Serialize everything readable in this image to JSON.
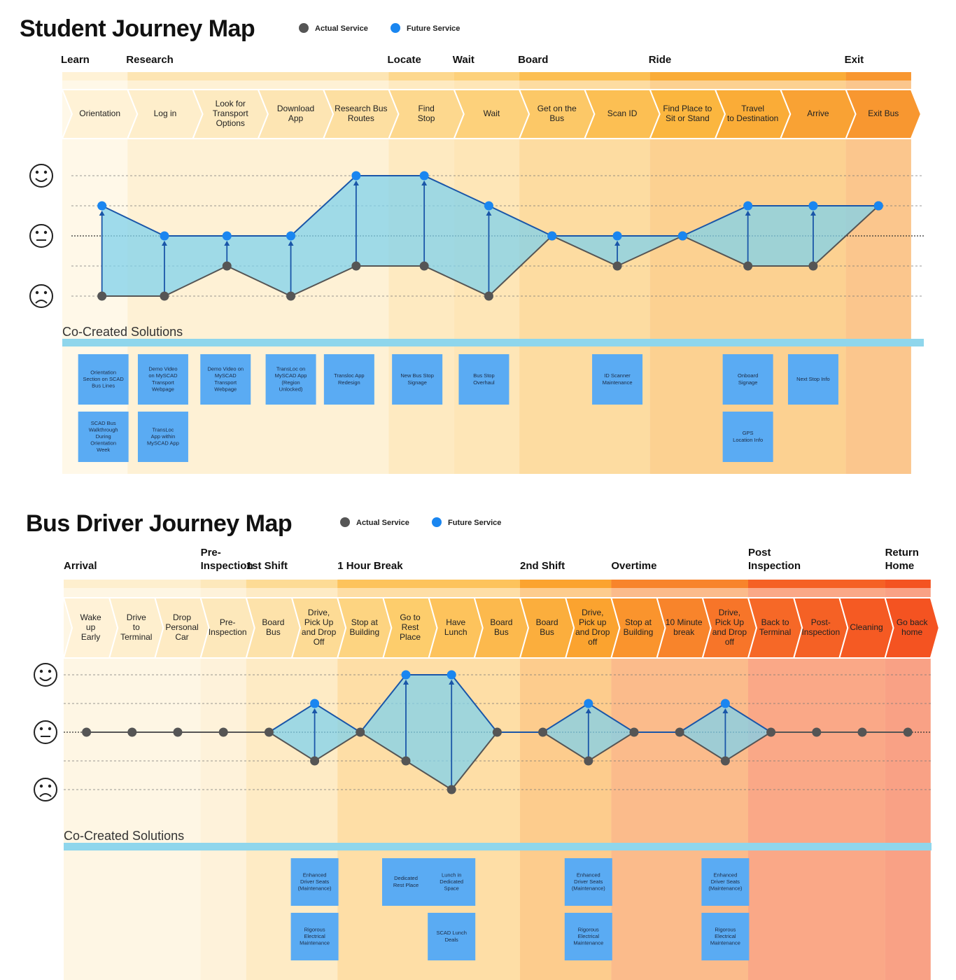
{
  "student": {
    "title": "Student Journey Map",
    "legend": {
      "actual": "Actual Service",
      "future": "Future Service",
      "actual_color": "#555555",
      "future_color": "#1a86f0"
    },
    "phases": [
      {
        "label": "Learn",
        "first": 0,
        "last": 0
      },
      {
        "label": "Research",
        "first": 1,
        "last": 4
      },
      {
        "label": "Locate",
        "first": 5,
        "last": 5
      },
      {
        "label": "Wait",
        "first": 6,
        "last": 6
      },
      {
        "label": "Board",
        "first": 7,
        "last": 8
      },
      {
        "label": "Ride",
        "first": 9,
        "last": 11
      },
      {
        "label": "Exit",
        "first": 12,
        "last": 12
      }
    ],
    "steps": [
      [
        "Orientation"
      ],
      [
        "Log in"
      ],
      [
        "Look for",
        "Transport",
        "Options"
      ],
      [
        "Download",
        "App"
      ],
      [
        "Research Bus",
        "Routes"
      ],
      [
        "Find",
        "Stop"
      ],
      [
        "Wait"
      ],
      [
        "Get on the",
        "Bus"
      ],
      [
        "Scan ID"
      ],
      [
        "Find Place to",
        "Sit or Stand"
      ],
      [
        "Travel",
        "to Destination"
      ],
      [
        "Arrive"
      ],
      [
        "Exit Bus"
      ]
    ],
    "emotion_scale": "1 = very sad, 5 = very happy",
    "actual": [
      {
        "step": 0,
        "level": 1
      },
      {
        "step": 1,
        "level": 1
      },
      {
        "step": 2,
        "level": 2
      },
      {
        "step": 3,
        "level": 1
      },
      {
        "step": 4,
        "level": 2
      },
      {
        "step": 5,
        "level": 2
      },
      {
        "step": 6,
        "level": 1
      },
      {
        "step": 7,
        "level": 3
      },
      {
        "step": 8,
        "level": 2
      },
      {
        "step": 9,
        "level": 3
      },
      {
        "step": 10,
        "level": 2
      },
      {
        "step": 11,
        "level": 2
      },
      {
        "step": 12,
        "level": 4
      }
    ],
    "future": [
      {
        "step": 0,
        "level": 4
      },
      {
        "step": 1,
        "level": 3
      },
      {
        "step": 2,
        "level": 3
      },
      {
        "step": 3,
        "level": 3
      },
      {
        "step": 4,
        "level": 5
      },
      {
        "step": 5,
        "level": 5
      },
      {
        "step": 6,
        "level": 4
      },
      {
        "step": 7,
        "level": 3
      },
      {
        "step": 8,
        "level": 3
      },
      {
        "step": 9,
        "level": 3
      },
      {
        "step": 10,
        "level": 4
      },
      {
        "step": 11,
        "level": 4
      },
      {
        "step": 12,
        "level": 4
      }
    ],
    "solutions_label": "Co-Created Solutions",
    "solutions": [
      {
        "step": 0,
        "row": 0,
        "text": [
          "Orientation",
          "Section on SCAD",
          "Bus Lines"
        ]
      },
      {
        "step": 0,
        "row": 1,
        "text": [
          "SCAD Bus",
          "Walkthrough",
          "During",
          "Orientation",
          "Week"
        ]
      },
      {
        "step": 1,
        "row": 0,
        "text": [
          "Demo Video",
          "on MySCAD",
          "Transport",
          "Webpage"
        ]
      },
      {
        "step": 1,
        "row": 1,
        "text": [
          "TransLoc",
          "App within",
          "MySCAD App"
        ]
      },
      {
        "step": 2,
        "row": 0,
        "text": [
          "Demo Video on",
          "MySCAD",
          "Transport",
          "Webpage"
        ]
      },
      {
        "step": 3,
        "row": 0,
        "text": [
          "TransLoc on",
          "MySCAD App",
          "(Region",
          "Unlocked)"
        ]
      },
      {
        "step": 4,
        "row": 0,
        "text": [
          "Transloc App",
          "Redesign"
        ]
      },
      {
        "step": 5,
        "row": 0,
        "text": [
          "New Bus Stop",
          "Signage"
        ]
      },
      {
        "step": 6,
        "row": 0,
        "text": [
          "Bus Stop",
          "Overhaul"
        ]
      },
      {
        "step": 8,
        "row": 0,
        "text": [
          "ID Scanner",
          "Maintenance"
        ]
      },
      {
        "step": 10,
        "row": 0,
        "text": [
          "Onboard",
          "Signage"
        ]
      },
      {
        "step": 10,
        "row": 1,
        "text": [
          "GPS",
          "Location Info"
        ]
      },
      {
        "step": 11,
        "row": 0,
        "text": [
          "Next Stop Info"
        ]
      }
    ]
  },
  "driver": {
    "title": "Bus Driver Journey Map",
    "legend": {
      "actual": "Actual Service",
      "future": "Future Service"
    },
    "phases": [
      {
        "label": [
          "Arrival"
        ],
        "first": 0,
        "last": 2
      },
      {
        "label": [
          "Pre-",
          "Inspection"
        ],
        "first": 3,
        "last": 3
      },
      {
        "label": [
          "1st Shift"
        ],
        "first": 4,
        "last": 5
      },
      {
        "label": [
          "1 Hour Break"
        ],
        "first": 6,
        "last": 9
      },
      {
        "label": [
          "2nd Shift"
        ],
        "first": 10,
        "last": 11
      },
      {
        "label": [
          "Overtime"
        ],
        "first": 12,
        "last": 14
      },
      {
        "label": [
          "Post",
          "Inspection"
        ],
        "first": 15,
        "last": 17
      },
      {
        "label": [
          "Return",
          "Home"
        ],
        "first": 18,
        "last": 18
      }
    ],
    "steps": [
      [
        "Wake",
        "up",
        "Early"
      ],
      [
        "Drive",
        "to",
        "Terminal"
      ],
      [
        "Drop",
        "Personal",
        "Car"
      ],
      [
        "Pre-",
        "Inspection"
      ],
      [
        "Board",
        "Bus"
      ],
      [
        "Drive,",
        "Pick Up",
        "and Drop",
        "Off"
      ],
      [
        "Stop at",
        "Building"
      ],
      [
        "Go to",
        "Rest",
        "Place"
      ],
      [
        "Have",
        "Lunch"
      ],
      [
        "Board",
        "Bus"
      ],
      [
        "Board",
        "Bus"
      ],
      [
        "Drive,",
        "Pick up",
        "and Drop",
        "off"
      ],
      [
        "Stop at",
        "Building"
      ],
      [
        "10 Minute",
        "break"
      ],
      [
        "Drive,",
        "Pick Up",
        "and Drop",
        "off"
      ],
      [
        "Back to",
        "Terminal"
      ],
      [
        "Post-",
        "Inspection"
      ],
      [
        "Cleaning"
      ],
      [
        "Go back",
        "home"
      ]
    ],
    "actual": [
      {
        "step": 0,
        "level": 3
      },
      {
        "step": 1,
        "level": 3
      },
      {
        "step": 2,
        "level": 3
      },
      {
        "step": 3,
        "level": 3
      },
      {
        "step": 4,
        "level": 3
      },
      {
        "step": 5,
        "level": 2
      },
      {
        "step": 6,
        "level": 3
      },
      {
        "step": 7,
        "level": 2
      },
      {
        "step": 8,
        "level": 1
      },
      {
        "step": 9,
        "level": 3
      },
      {
        "step": 10,
        "level": 3
      },
      {
        "step": 11,
        "level": 2
      },
      {
        "step": 12,
        "level": 3
      },
      {
        "step": 13,
        "level": 3
      },
      {
        "step": 14,
        "level": 2
      },
      {
        "step": 15,
        "level": 3
      },
      {
        "step": 16,
        "level": 3
      },
      {
        "step": 17,
        "level": 3
      },
      {
        "step": 18,
        "level": 3
      }
    ],
    "future": [
      {
        "step": 4,
        "level": 3
      },
      {
        "step": 5,
        "level": 4
      },
      {
        "step": 6,
        "level": 3
      },
      {
        "step": 7,
        "level": 5
      },
      {
        "step": 8,
        "level": 5
      },
      {
        "step": 9,
        "level": 3
      },
      {
        "step": 10,
        "level": 3
      },
      {
        "step": 11,
        "level": 4
      },
      {
        "step": 12,
        "level": 3
      },
      {
        "step": 13,
        "level": 3
      },
      {
        "step": 14,
        "level": 4
      },
      {
        "step": 15,
        "level": 3
      }
    ],
    "solutions_label": "Co-Created Solutions",
    "solutions": [
      {
        "step": 5,
        "row": 0,
        "text": [
          "Enhanced",
          "Driver Seats",
          "(Maintenance)"
        ]
      },
      {
        "step": 5,
        "row": 1,
        "text": [
          "Rigorous",
          "Electrical",
          "Maintenance"
        ]
      },
      {
        "step": 7,
        "row": 0,
        "text": [
          "Dedicated",
          "Rest Place"
        ]
      },
      {
        "step": 8,
        "row": 0,
        "text": [
          "Lunch in",
          "Dedicated",
          "Space"
        ]
      },
      {
        "step": 8,
        "row": 1,
        "text": [
          "SCAD Lunch",
          "Deals"
        ]
      },
      {
        "step": 11,
        "row": 0,
        "text": [
          "Enhanced",
          "Driver Seats",
          "(Maintenance)"
        ]
      },
      {
        "step": 11,
        "row": 1,
        "text": [
          "Rigorous",
          "Electrical",
          "Maintenance"
        ]
      },
      {
        "step": 14,
        "row": 0,
        "text": [
          "Enhanced",
          "Driver Seats",
          "(Maintenance)"
        ]
      },
      {
        "step": 14,
        "row": 1,
        "text": [
          "Rigorous",
          "Electrical",
          "Maintenance"
        ]
      }
    ]
  },
  "faces": {
    "happy": "☺",
    "neutral": "😐",
    "sad": "☹"
  },
  "colors": {
    "student_gradient": [
      "#fff4dc",
      "#fde7b8",
      "#fdd17b",
      "#fbb43a",
      "#f8922e"
    ],
    "driver_gradient": [
      "#fff4dc",
      "#fde7b8",
      "#fdcc6a",
      "#fba52f",
      "#f66a28",
      "#f44f20"
    ],
    "future_fill": "#7fd1ec",
    "future_line": "#1a56a8",
    "actual_line": "#555555",
    "solution_box": "#5aabf3",
    "solution_bar": "#8fd6ec"
  }
}
